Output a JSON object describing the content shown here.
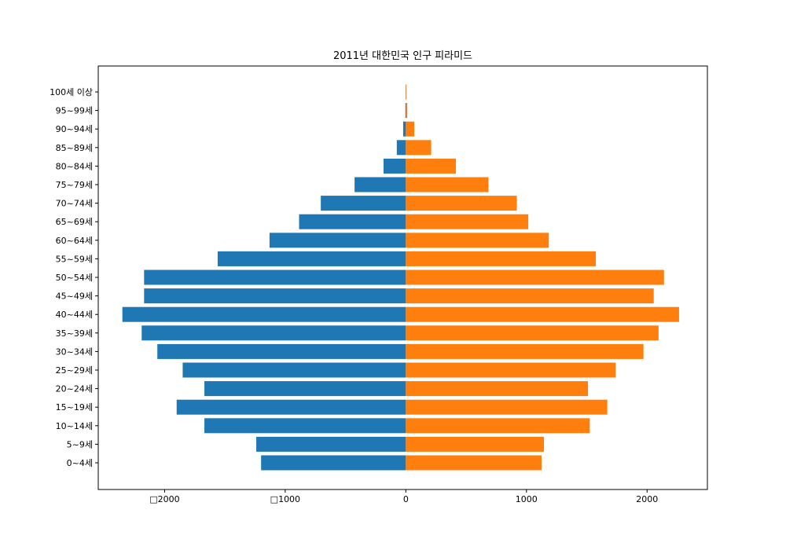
{
  "chart_data": {
    "type": "bar",
    "orientation": "horizontal",
    "title": "2011년 대한민국 인구 피라미드",
    "xlabel": "",
    "ylabel": "",
    "categories": [
      "0~4세",
      "5~9세",
      "10~14세",
      "15~19세",
      "20~24세",
      "25~29세",
      "30~34세",
      "35~39세",
      "40~44세",
      "45~49세",
      "50~54세",
      "55~59세",
      "60~64세",
      "65~69세",
      "70~74세",
      "75~79세",
      "80~84세",
      "85~89세",
      "90~94세",
      "95~99세",
      "100세 이상"
    ],
    "series": [
      {
        "color": "#1f77b4",
        "values": [
          -1200,
          -1240,
          -1670,
          -1900,
          -1670,
          -1850,
          -2060,
          -2190,
          -2350,
          -2170,
          -2170,
          -1560,
          -1130,
          -885,
          -705,
          -425,
          -185,
          -75,
          -22,
          -4,
          -1
        ]
      },
      {
        "color": "#ff7f0e",
        "values": [
          1125,
          1145,
          1525,
          1670,
          1510,
          1740,
          1970,
          2095,
          2265,
          2055,
          2140,
          1575,
          1185,
          1015,
          920,
          685,
          415,
          210,
          70,
          12,
          2
        ]
      }
    ],
    "xlim": [
      -2550,
      2500
    ],
    "xticks": [
      {
        "value": -2000,
        "label": "□2000"
      },
      {
        "value": -1000,
        "label": "□1000"
      },
      {
        "value": 0,
        "label": "0"
      },
      {
        "value": 1000,
        "label": "1000"
      },
      {
        "value": 2000,
        "label": "2000"
      }
    ],
    "grid": false,
    "legend": "none"
  }
}
